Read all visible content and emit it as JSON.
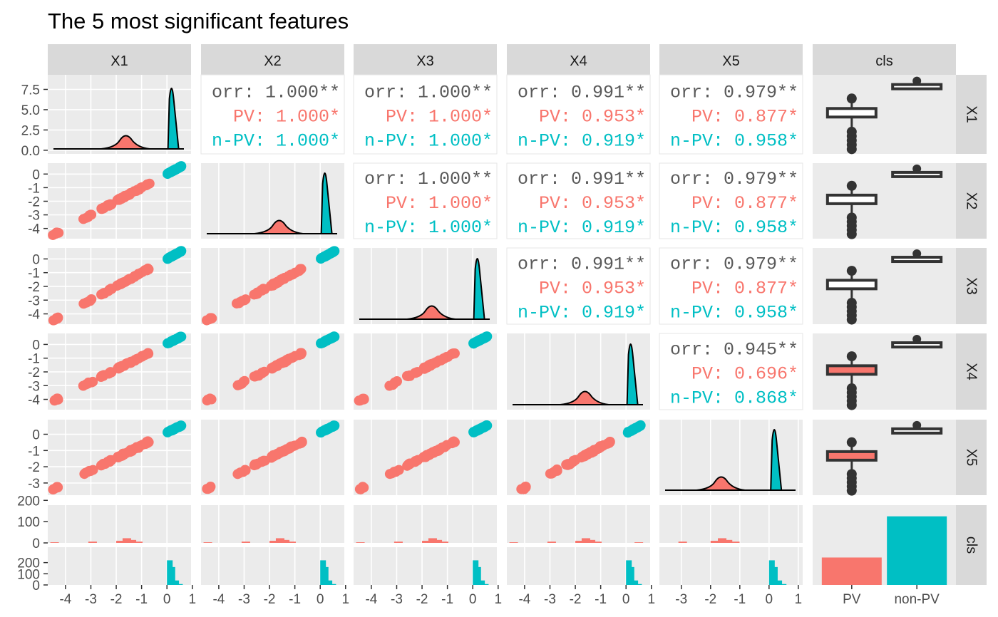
{
  "title": "The 5 most significant features",
  "colors": {
    "pv": "#F8766D",
    "nonpv": "#00BFC4",
    "corr": "#595959",
    "strip": "#D9D9D9",
    "panel": "#EBEBEB"
  },
  "chart_data": {
    "type": "scatter",
    "variables": [
      "X1",
      "X2",
      "X3",
      "X4",
      "X5",
      "cls"
    ],
    "groups": [
      "PV",
      "non-PV"
    ],
    "cls_counts": [
      {
        "name": "PV",
        "value": 100
      },
      {
        "name": "non-PV",
        "value": 250
      }
    ],
    "correlations": {
      "1,0": {
        "corr": "orr: 1.000**",
        "pv": "PV: 1.000*",
        "nonpv": "n-PV: 1.000*"
      },
      "2,0": {
        "corr": "orr: 1.000**",
        "pv": "PV: 1.000*",
        "nonpv": "n-PV: 1.000*"
      },
      "3,0": {
        "corr": "orr: 0.991**",
        "pv": "PV: 0.953*",
        "nonpv": "n-PV: 0.919*"
      },
      "4,0": {
        "corr": "orr: 0.979**",
        "pv": "PV: 0.877*",
        "nonpv": "n-PV: 0.958*"
      },
      "2,1": {
        "corr": "orr: 1.000**",
        "pv": "PV: 1.000*",
        "nonpv": "n-PV: 1.000*"
      },
      "3,1": {
        "corr": "orr: 0.991**",
        "pv": "PV: 0.953*",
        "nonpv": "n-PV: 0.919*"
      },
      "4,1": {
        "corr": "orr: 0.979**",
        "pv": "PV: 0.877*",
        "nonpv": "n-PV: 0.958*"
      },
      "3,2": {
        "corr": "orr: 0.991**",
        "pv": "PV: 0.953*",
        "nonpv": "n-PV: 0.919*"
      },
      "4,2": {
        "corr": "orr: 0.979**",
        "pv": "PV: 0.877*",
        "nonpv": "n-PV: 0.958*"
      },
      "4,3": {
        "corr": "orr: 0.945**",
        "pv": "PV: 0.696*",
        "nonpv": "n-PV: 0.868*"
      }
    },
    "x_ticks": [
      {
        "labels": [
          "-4",
          "-3",
          "-2",
          "-1",
          "0",
          "1"
        ],
        "values": [
          -4,
          -3,
          -2,
          -1,
          0,
          1
        ],
        "range": [
          -4.7,
          0.95
        ]
      },
      {
        "labels": [
          "-4",
          "-3",
          "-2",
          "-1",
          "0",
          "1"
        ],
        "values": [
          -4,
          -3,
          -2,
          -1,
          0,
          1
        ],
        "range": [
          -4.7,
          0.95
        ]
      },
      {
        "labels": [
          "-4",
          "-3",
          "-2",
          "-1",
          "0",
          "1"
        ],
        "values": [
          -4,
          -3,
          -2,
          -1,
          0,
          1
        ],
        "range": [
          -4.7,
          0.95
        ]
      },
      {
        "labels": [
          "-4",
          "-3",
          "-2",
          "-1",
          "0",
          "1"
        ],
        "values": [
          -4,
          -3,
          -2,
          -1,
          0,
          1
        ],
        "range": [
          -4.7,
          0.95
        ]
      },
      {
        "labels": [
          "-3",
          "-2",
          "-1",
          "0",
          "1"
        ],
        "values": [
          -3,
          -2,
          -1,
          0,
          1
        ],
        "range": [
          -3.75,
          1.15
        ]
      },
      {
        "labels": [
          "PV",
          "non-PV"
        ],
        "values": [
          0,
          1
        ],
        "range": [
          -0.6,
          1.6
        ]
      }
    ],
    "y_ticks": [
      {
        "labels": [
          "0.0",
          "2.5",
          "5.0",
          "7.5"
        ],
        "values": [
          0,
          2.5,
          5,
          7.5
        ],
        "range": [
          -0.45,
          9.3
        ]
      },
      {
        "labels": [
          "-4",
          "-3",
          "-2",
          "-1",
          "0"
        ],
        "values": [
          -4,
          -3,
          -2,
          -1,
          0
        ],
        "range": [
          -4.75,
          0.8
        ]
      },
      {
        "labels": [
          "-4",
          "-3",
          "-2",
          "-1",
          "0"
        ],
        "values": [
          -4,
          -3,
          -2,
          -1,
          0
        ],
        "range": [
          -4.75,
          0.8
        ]
      },
      {
        "labels": [
          "-4",
          "-3",
          "-2",
          "-1",
          "0"
        ],
        "values": [
          -4,
          -3,
          -2,
          -1,
          0
        ],
        "range": [
          -4.75,
          0.8
        ]
      },
      {
        "labels": [
          "-3",
          "-2",
          "-1",
          "0"
        ],
        "values": [
          -3,
          -2,
          -1,
          0
        ],
        "range": [
          -3.75,
          0.9
        ]
      },
      {
        "labels": [
          "0",
          "100",
          "200",
          "0",
          "100",
          "200"
        ],
        "values": [
          0,
          100,
          200,
          0,
          100,
          200
        ],
        "range": [
          0,
          280
        ]
      }
    ],
    "facet_counts": [
      "0",
      "100",
      "200"
    ]
  }
}
